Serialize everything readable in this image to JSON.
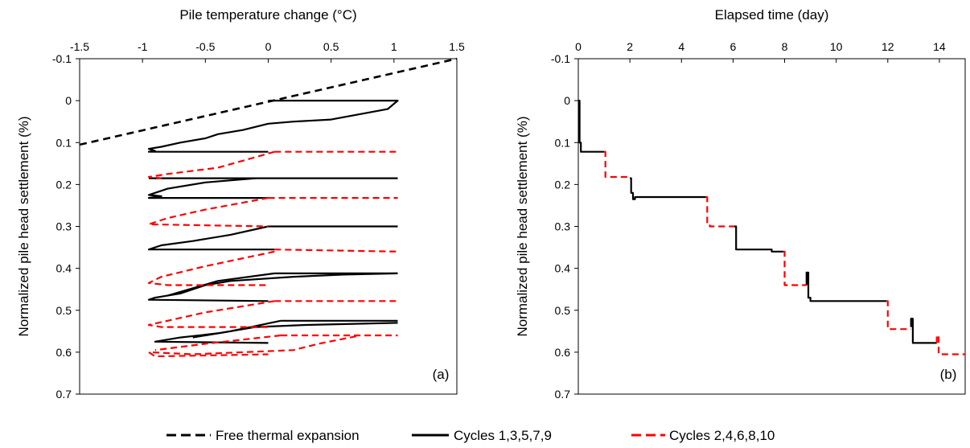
{
  "legend": [
    {
      "label": "Free thermal expansion",
      "color": "#000000",
      "style": "dashed"
    },
    {
      "label": "Cycles 1,3,5,7,9",
      "color": "#000000",
      "style": "solid"
    },
    {
      "label": "Cycles 2,4,6,8,10",
      "color": "#ff0000",
      "style": "dashed"
    }
  ],
  "chart_data": [
    {
      "type": "line",
      "panel_label": "(a)",
      "xlabel": "Pile temperature  change (°C)",
      "ylabel": "Normalized  pile head settlement (%)",
      "x_axis_position": "top",
      "y_inverted": true,
      "xlim": [
        -1.5,
        1.5
      ],
      "ylim": [
        -0.1,
        0.7
      ],
      "x_ticks": [
        -1.5,
        -1,
        -0.5,
        0,
        0.5,
        1,
        1.5
      ],
      "x_tick_labels": [
        "-1.5",
        "-1",
        "-0.5",
        "0",
        "0.5",
        "1",
        "1.5"
      ],
      "y_ticks": [
        -0.1,
        0,
        0.1,
        0.2,
        0.3,
        0.4,
        0.5,
        0.6,
        0.7
      ],
      "y_tick_labels": [
        "-0.1",
        "0",
        "0.1",
        "0.2",
        "0.3",
        "0.4",
        "0.5",
        "0.6",
        "0.7"
      ],
      "grid": false,
      "series": [
        {
          "name": "Free thermal expansion",
          "color": "#000000",
          "style": "dashed",
          "segments": [
            [
              [
                -1.5,
                0.105
              ],
              [
                1.5,
                -0.1
              ]
            ]
          ]
        },
        {
          "name": "Cycles 1,3,5,7,9",
          "color": "#000000",
          "style": "solid",
          "segments": [
            [
              [
                0,
                0
              ],
              [
                1.03,
                0
              ],
              [
                0.95,
                0.02
              ],
              [
                0.5,
                0.045
              ],
              [
                0.2,
                0.05
              ],
              [
                0,
                0.055
              ],
              [
                -0.2,
                0.07
              ],
              [
                -0.4,
                0.08
              ],
              [
                -0.5,
                0.09
              ],
              [
                -0.7,
                0.1
              ],
              [
                -0.85,
                0.11
              ],
              [
                -0.95,
                0.115
              ],
              [
                -0.9,
                0.12
              ],
              [
                -0.95,
                0.122
              ],
              [
                0,
                0.122
              ]
            ],
            [
              [
                -0.95,
                0.185
              ],
              [
                1.03,
                0.185
              ]
            ],
            [
              [
                -0.1,
                0.185
              ],
              [
                -0.5,
                0.195
              ],
              [
                -0.8,
                0.21
              ],
              [
                -0.95,
                0.225
              ],
              [
                -0.85,
                0.228
              ],
              [
                -0.95,
                0.232
              ],
              [
                0,
                0.232
              ]
            ],
            [
              [
                0,
                0.3
              ],
              [
                1.03,
                0.3
              ]
            ],
            [
              [
                0,
                0.3
              ],
              [
                -0.3,
                0.32
              ],
              [
                -0.6,
                0.335
              ],
              [
                -0.85,
                0.345
              ],
              [
                -0.95,
                0.355
              ],
              [
                0.05,
                0.355
              ]
            ],
            [
              [
                0.05,
                0.412
              ],
              [
                1.03,
                0.412
              ]
            ],
            [
              [
                1.03,
                0.412
              ],
              [
                0.6,
                0.415
              ],
              [
                0.2,
                0.42
              ],
              [
                -0.3,
                0.43
              ],
              [
                -0.5,
                0.44
              ],
              [
                -0.7,
                0.46
              ],
              [
                -0.9,
                0.47
              ],
              [
                -0.95,
                0.475
              ],
              [
                0,
                0.478
              ]
            ],
            [
              [
                0.05,
                0.412
              ],
              [
                -0.4,
                0.43
              ],
              [
                -0.8,
                0.465
              ]
            ],
            [
              [
                0.1,
                0.525
              ],
              [
                1.03,
                0.525
              ]
            ],
            [
              [
                1.03,
                0.53
              ],
              [
                0.3,
                0.535
              ],
              [
                -0.1,
                0.54
              ],
              [
                -0.4,
                0.555
              ],
              [
                -0.7,
                0.565
              ],
              [
                -0.9,
                0.575
              ],
              [
                0,
                0.578
              ]
            ],
            [
              [
                0.1,
                0.525
              ],
              [
                -0.3,
                0.55
              ],
              [
                -0.6,
                0.565
              ]
            ]
          ]
        },
        {
          "name": "Cycles 2,4,6,8,10",
          "color": "#ff0000",
          "style": "dashed",
          "segments": [
            [
              [
                0.05,
                0.122
              ],
              [
                1.03,
                0.122
              ]
            ],
            [
              [
                0.05,
                0.122
              ],
              [
                -0.4,
                0.16
              ],
              [
                -0.8,
                0.175
              ],
              [
                -0.95,
                0.182
              ],
              [
                -0.85,
                0.185
              ]
            ],
            [
              [
                0,
                0.232
              ],
              [
                1.03,
                0.232
              ]
            ],
            [
              [
                0,
                0.232
              ],
              [
                -0.5,
                0.26
              ],
              [
                -0.8,
                0.28
              ],
              [
                -0.95,
                0.295
              ],
              [
                0,
                0.3
              ]
            ],
            [
              [
                0.05,
                0.355
              ],
              [
                1.03,
                0.36
              ]
            ],
            [
              [
                0.05,
                0.36
              ],
              [
                -0.5,
                0.395
              ],
              [
                -0.85,
                0.42
              ],
              [
                -0.95,
                0.435
              ],
              [
                -0.8,
                0.44
              ],
              [
                -0.4,
                0.44
              ],
              [
                0,
                0.44
              ]
            ],
            [
              [
                0.05,
                0.478
              ],
              [
                1.03,
                0.478
              ]
            ],
            [
              [
                0.05,
                0.478
              ],
              [
                -0.5,
                0.505
              ],
              [
                -0.8,
                0.525
              ],
              [
                -0.95,
                0.535
              ],
              [
                -0.85,
                0.54
              ],
              [
                0,
                0.54
              ]
            ],
            [
              [
                0.1,
                0.56
              ],
              [
                1.03,
                0.56
              ]
            ],
            [
              [
                0.7,
                0.562
              ],
              [
                0.4,
                0.58
              ],
              [
                0.2,
                0.595
              ],
              [
                -0.2,
                0.6
              ],
              [
                -0.6,
                0.605
              ],
              [
                -0.95,
                0.6
              ],
              [
                -0.9,
                0.61
              ],
              [
                0,
                0.605
              ]
            ],
            [
              [
                0.1,
                0.56
              ],
              [
                -0.5,
                0.58
              ],
              [
                -0.9,
                0.595
              ]
            ]
          ]
        }
      ]
    },
    {
      "type": "line",
      "panel_label": "(b)",
      "xlabel": "Elapsed time (day)",
      "ylabel": "Normalized  pile head settlement (%)",
      "x_axis_position": "top",
      "y_inverted": true,
      "xlim": [
        0,
        15
      ],
      "ylim": [
        -0.1,
        0.7
      ],
      "x_ticks": [
        0,
        2,
        4,
        6,
        8,
        10,
        12,
        14
      ],
      "x_tick_labels": [
        "0",
        "2",
        "4",
        "6",
        "8",
        "10",
        "12",
        "14"
      ],
      "y_ticks": [
        -0.1,
        0,
        0.1,
        0.2,
        0.3,
        0.4,
        0.5,
        0.6,
        0.7
      ],
      "y_tick_labels": [
        "-0.1",
        "0",
        "0.1",
        "0.2",
        "0.3",
        "0.4",
        "0.5",
        "0.6",
        "0.7"
      ],
      "grid": false,
      "series": [
        {
          "name": "Cycles 1,3,5,7,9",
          "color": "#000000",
          "style": "solid",
          "segments": [
            [
              [
                0,
                0
              ],
              [
                0.05,
                0
              ],
              [
                0.05,
                0.1
              ],
              [
                0.1,
                0.1
              ],
              [
                0.1,
                0.122
              ],
              [
                1,
                0.122
              ]
            ],
            [
              [
                2,
                0.185
              ],
              [
                2.05,
                0.185
              ],
              [
                2.05,
                0.22
              ],
              [
                2.12,
                0.22
              ],
              [
                2.12,
                0.235
              ],
              [
                2.2,
                0.235
              ],
              [
                2.2,
                0.23
              ],
              [
                4.95,
                0.23
              ]
            ],
            [
              [
                6.05,
                0.3
              ],
              [
                6.12,
                0.3
              ],
              [
                6.12,
                0.355
              ],
              [
                7.5,
                0.355
              ],
              [
                7.5,
                0.36
              ],
              [
                7.95,
                0.36
              ]
            ],
            [
              [
                8.85,
                0.44
              ],
              [
                8.85,
                0.41
              ],
              [
                8.92,
                0.41
              ],
              [
                8.92,
                0.47
              ],
              [
                9.0,
                0.47
              ],
              [
                9.0,
                0.478
              ],
              [
                11.95,
                0.478
              ]
            ],
            [
              [
                12.9,
                0.54
              ],
              [
                12.9,
                0.52
              ],
              [
                12.97,
                0.52
              ],
              [
                12.97,
                0.578
              ],
              [
                13.9,
                0.578
              ]
            ]
          ]
        },
        {
          "name": "Cycles 2,4,6,8,10",
          "color": "#ff0000",
          "style": "dashed",
          "segments": [
            [
              [
                1,
                0.122
              ],
              [
                1.05,
                0.122
              ],
              [
                1.05,
                0.182
              ],
              [
                2,
                0.182
              ]
            ],
            [
              [
                4.95,
                0.23
              ],
              [
                5.0,
                0.23
              ],
              [
                5.0,
                0.295
              ],
              [
                5.1,
                0.295
              ],
              [
                5.1,
                0.3
              ],
              [
                6.05,
                0.3
              ]
            ],
            [
              [
                7.95,
                0.36
              ],
              [
                8.0,
                0.36
              ],
              [
                8.0,
                0.44
              ],
              [
                8.85,
                0.44
              ]
            ],
            [
              [
                11.95,
                0.478
              ],
              [
                12.0,
                0.478
              ],
              [
                12.0,
                0.545
              ],
              [
                12.9,
                0.545
              ]
            ],
            [
              [
                13.9,
                0.578
              ],
              [
                13.9,
                0.56
              ],
              [
                13.97,
                0.56
              ],
              [
                13.97,
                0.605
              ],
              [
                15,
                0.605
              ]
            ]
          ]
        }
      ]
    }
  ]
}
